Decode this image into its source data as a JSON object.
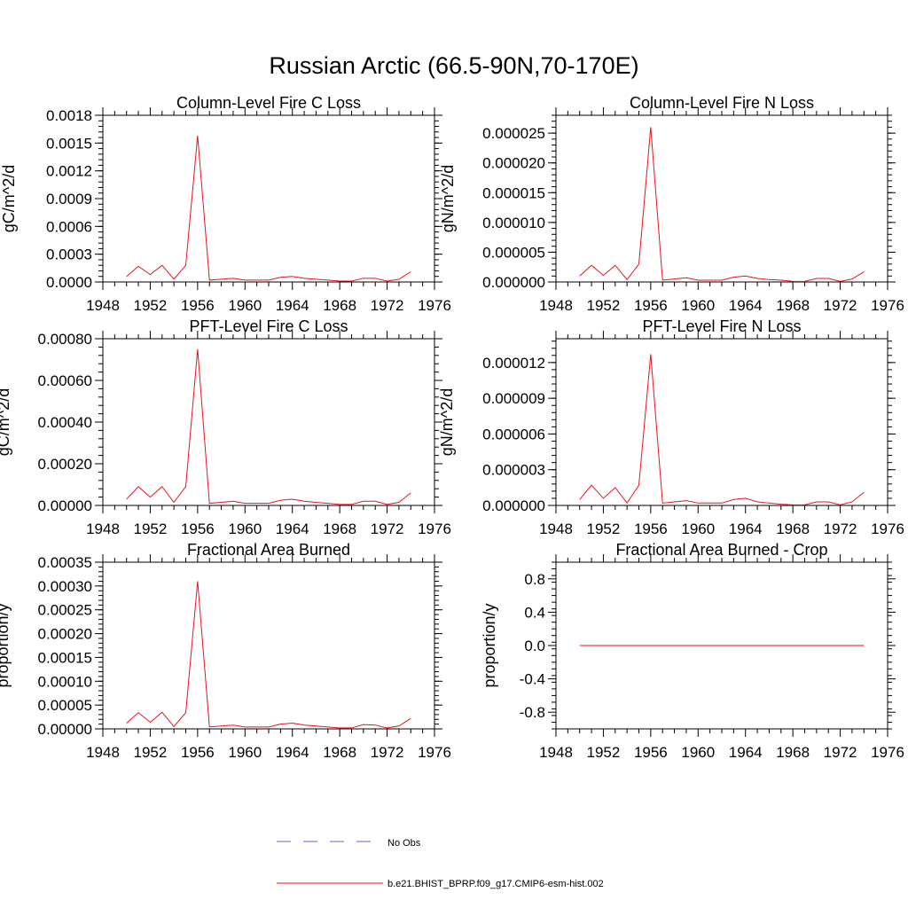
{
  "figure": {
    "title": "Russian Arctic (66.5-90N,70-170E)"
  },
  "colors": {
    "model": "#e8141e",
    "obs": "#5a64c8",
    "axis": "#000000"
  },
  "chart_data": [
    {
      "type": "line",
      "title": "Column-Level Fire C Loss",
      "ylabel": "gC/m^2/d",
      "xlim": [
        1948,
        1976
      ],
      "xticks": [
        1948,
        1952,
        1956,
        1960,
        1964,
        1968,
        1972,
        1976
      ],
      "ylim": [
        0,
        0.0018
      ],
      "yticks": [
        "0.0000",
        "0.0003",
        "0.0006",
        "0.0009",
        "0.0012",
        "0.0015",
        "0.0018"
      ],
      "x": [
        1950,
        1951,
        1952,
        1953,
        1954,
        1955,
        1956,
        1957,
        1958,
        1959,
        1960,
        1961,
        1962,
        1963,
        1964,
        1965,
        1966,
        1967,
        1968,
        1969,
        1970,
        1971,
        1972,
        1973,
        1974
      ],
      "series": [
        {
          "name": "b.e21.BHIST_BPRP.f09_g17.CMIP6-esm-hist.002",
          "values": [
            6e-05,
            0.00017,
            8e-05,
            0.00018,
            3e-05,
            0.00018,
            0.00158,
            2e-05,
            3e-05,
            4e-05,
            2e-05,
            2e-05,
            2e-05,
            5e-05,
            6e-05,
            4e-05,
            3e-05,
            2e-05,
            1e-05,
            1e-05,
            4e-05,
            4e-05,
            1e-05,
            3e-05,
            0.00011
          ]
        }
      ]
    },
    {
      "type": "line",
      "title": "Column-Level Fire N Loss",
      "ylabel": "gN/m^2/d",
      "xlim": [
        1948,
        1976
      ],
      "xticks": [
        1948,
        1952,
        1956,
        1960,
        1964,
        1968,
        1972,
        1976
      ],
      "ylim": [
        0,
        2.8e-05
      ],
      "yticks": [
        "0.000000",
        "0.000005",
        "0.000010",
        "0.000015",
        "0.000020",
        "0.000025"
      ],
      "x": [
        1950,
        1951,
        1952,
        1953,
        1954,
        1955,
        1956,
        1957,
        1958,
        1959,
        1960,
        1961,
        1962,
        1963,
        1964,
        1965,
        1966,
        1967,
        1968,
        1969,
        1970,
        1971,
        1972,
        1973,
        1974
      ],
      "series": [
        {
          "name": "b.e21.BHIST_BPRP.f09_g17.CMIP6-esm-hist.002",
          "values": [
            1e-06,
            2.8e-06,
            1.1e-06,
            2.8e-06,
            4e-07,
            3e-06,
            2.6e-05,
            3e-07,
            5e-07,
            7e-07,
            3e-07,
            3e-07,
            3e-07,
            8e-07,
            1e-06,
            6e-07,
            4e-07,
            3e-07,
            1e-07,
            1e-07,
            6e-07,
            6e-07,
            1e-07,
            5e-07,
            1.7e-06
          ]
        }
      ]
    },
    {
      "type": "line",
      "title": "PFT-Level Fire C Loss",
      "ylabel": "gC/m^2/d",
      "xlim": [
        1948,
        1976
      ],
      "xticks": [
        1948,
        1952,
        1956,
        1960,
        1964,
        1968,
        1972,
        1976
      ],
      "ylim": [
        0,
        0.0008
      ],
      "yticks": [
        "0.00000",
        "0.00020",
        "0.00040",
        "0.00060",
        "0.00080"
      ],
      "x": [
        1950,
        1951,
        1952,
        1953,
        1954,
        1955,
        1956,
        1957,
        1958,
        1959,
        1960,
        1961,
        1962,
        1963,
        1964,
        1965,
        1966,
        1967,
        1968,
        1969,
        1970,
        1971,
        1972,
        1973,
        1974
      ],
      "series": [
        {
          "name": "b.e21.BHIST_BPRP.f09_g17.CMIP6-esm-hist.002",
          "values": [
            3e-05,
            9e-05,
            4e-05,
            9e-05,
            1.5e-05,
            9e-05,
            0.00075,
            1e-05,
            1.5e-05,
            2e-05,
            1e-05,
            1e-05,
            1e-05,
            2.5e-05,
            3e-05,
            2e-05,
            1.5e-05,
            1e-05,
            5e-06,
            5e-06,
            2e-05,
            2e-05,
            5e-06,
            1.5e-05,
            6e-05
          ]
        }
      ]
    },
    {
      "type": "line",
      "title": "PFT-Level Fire N Loss",
      "ylabel": "gN/m^2/d",
      "xlim": [
        1948,
        1976
      ],
      "xticks": [
        1948,
        1952,
        1956,
        1960,
        1964,
        1968,
        1972,
        1976
      ],
      "ylim": [
        0,
        1.4e-05
      ],
      "yticks": [
        "0.000000",
        "0.000003",
        "0.000006",
        "0.000009",
        "0.000012"
      ],
      "x": [
        1950,
        1951,
        1952,
        1953,
        1954,
        1955,
        1956,
        1957,
        1958,
        1959,
        1960,
        1961,
        1962,
        1963,
        1964,
        1965,
        1966,
        1967,
        1968,
        1969,
        1970,
        1971,
        1972,
        1973,
        1974
      ],
      "series": [
        {
          "name": "b.e21.BHIST_BPRP.f09_g17.CMIP6-esm-hist.002",
          "values": [
            5e-07,
            1.7e-06,
            6e-07,
            1.5e-06,
            2e-07,
            1.7e-06,
            1.27e-05,
            2e-07,
            3e-07,
            4e-07,
            2e-07,
            2e-07,
            2e-07,
            5e-07,
            6e-07,
            3e-07,
            2e-07,
            1e-07,
            5e-08,
            5e-08,
            3e-07,
            3e-07,
            5e-08,
            3e-07,
            1.1e-06
          ]
        }
      ]
    },
    {
      "type": "line",
      "title": "Fractional Area Burned",
      "ylabel": "proportion/y",
      "xlim": [
        1948,
        1976
      ],
      "xticks": [
        1948,
        1952,
        1956,
        1960,
        1964,
        1968,
        1972,
        1976
      ],
      "ylim": [
        0,
        0.00035
      ],
      "yticks": [
        "0.00000",
        "0.00005",
        "0.00010",
        "0.00015",
        "0.00020",
        "0.00025",
        "0.00030",
        "0.00035"
      ],
      "x": [
        1950,
        1951,
        1952,
        1953,
        1954,
        1955,
        1956,
        1957,
        1958,
        1959,
        1960,
        1961,
        1962,
        1963,
        1964,
        1965,
        1966,
        1967,
        1968,
        1969,
        1970,
        1971,
        1972,
        1973,
        1974
      ],
      "series": [
        {
          "name": "b.e21.BHIST_BPRP.f09_g17.CMIP6-esm-hist.002",
          "values": [
            1.2e-05,
            3.4e-05,
            1.4e-05,
            3.5e-05,
            5e-06,
            3.4e-05,
            0.00031,
            4e-06,
            6e-06,
            8e-06,
            4e-06,
            4e-06,
            4e-06,
            1e-05,
            1.2e-05,
            8e-06,
            6e-06,
            4e-06,
            2e-06,
            2e-06,
            9e-06,
            8e-06,
            2e-06,
            6e-06,
            2.2e-05
          ]
        }
      ]
    },
    {
      "type": "line",
      "title": "Fractional Area Burned - Crop",
      "ylabel": "proportion/y",
      "xlim": [
        1948,
        1976
      ],
      "xticks": [
        1948,
        1952,
        1956,
        1960,
        1964,
        1968,
        1972,
        1976
      ],
      "ylim": [
        -1.0,
        1.0
      ],
      "yticks": [
        "-0.8",
        "-0.4",
        "0.0",
        "0.4",
        "0.8"
      ],
      "ytick_values": [
        -0.8,
        -0.4,
        0.0,
        0.4,
        0.8
      ],
      "x": [
        1950,
        1974
      ],
      "series": [
        {
          "name": "b.e21.BHIST_BPRP.f09_g17.CMIP6-esm-hist.002",
          "values": [
            0.0,
            0.0
          ]
        }
      ]
    }
  ],
  "legend": {
    "position": "bottom-center",
    "entries": [
      {
        "label": "No Obs",
        "style": "dashed"
      },
      {
        "label": "b.e21.BHIST_BPRP.f09_g17.CMIP6-esm-hist.002",
        "style": "solid"
      }
    ]
  }
}
